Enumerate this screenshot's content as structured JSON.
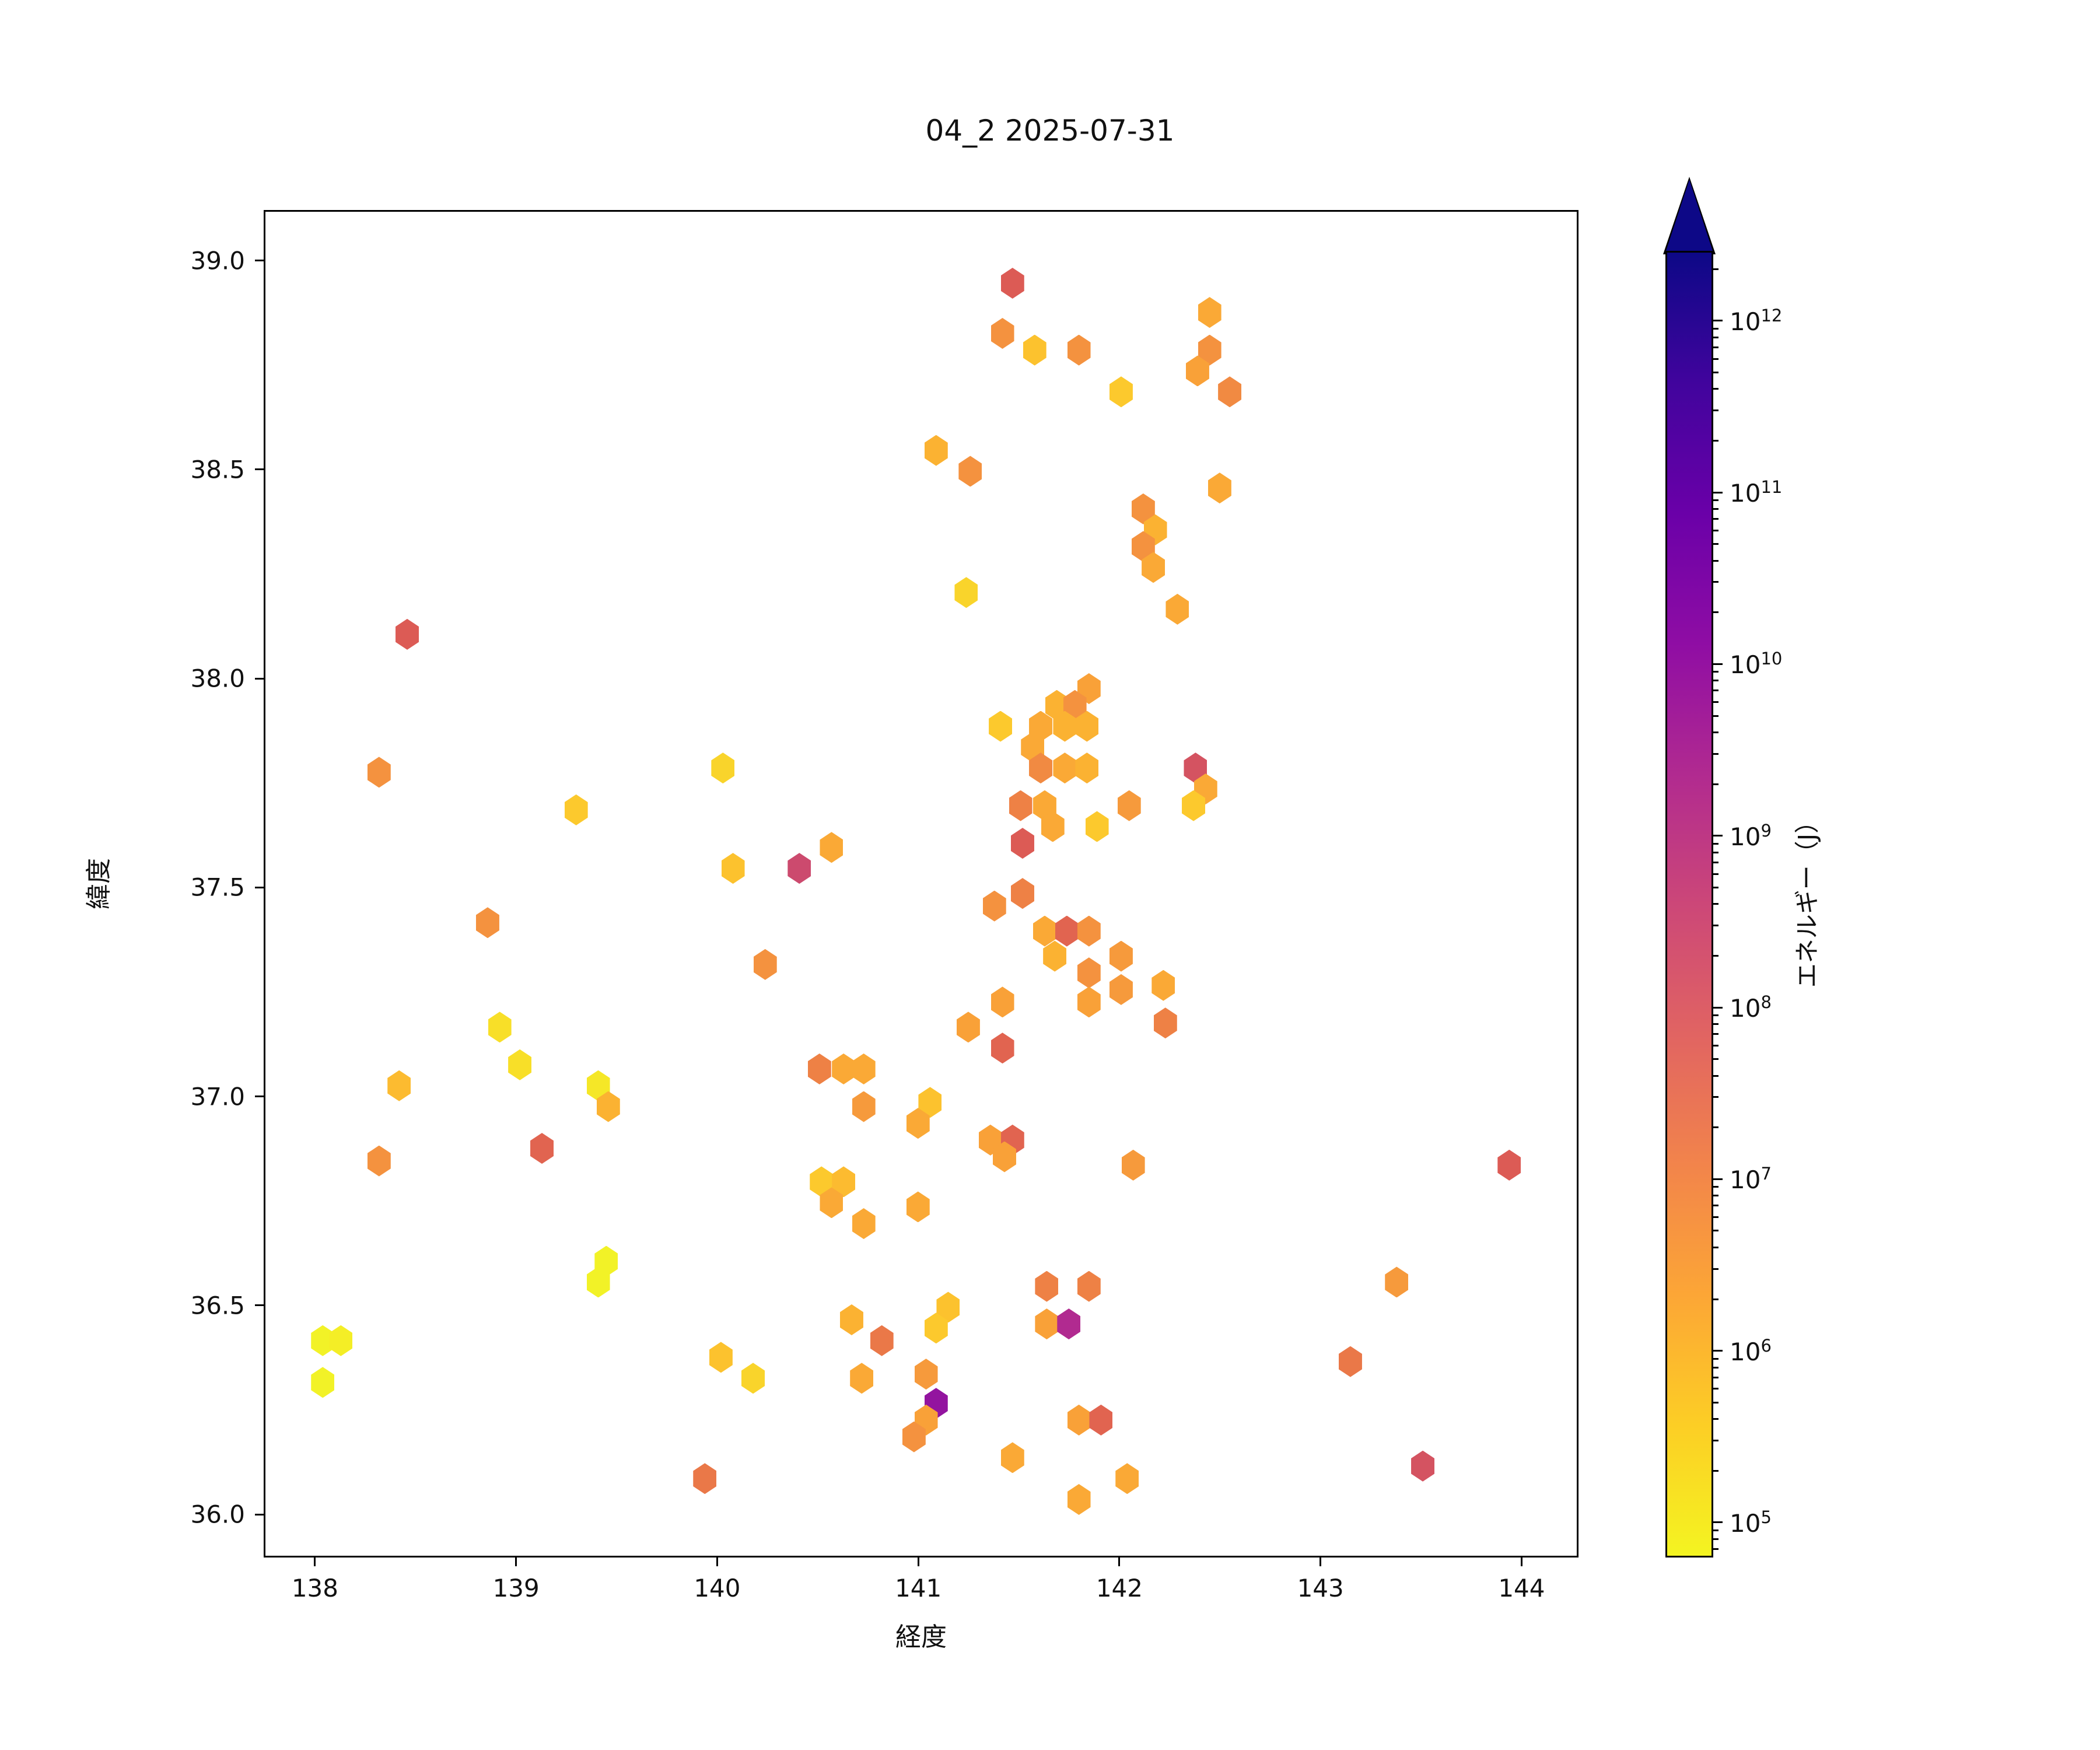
{
  "title": "04_2 2025-07-31",
  "axes": {
    "xlabel": "経度",
    "ylabel": "緯度"
  },
  "colorbar": {
    "label": "エネルギー（J）",
    "scale": "log",
    "extend": "max",
    "range_log10": [
      4.796,
      12.407
    ],
    "ticks": [
      {
        "exp": 5
      },
      {
        "exp": 6
      },
      {
        "exp": 7
      },
      {
        "exp": 8
      },
      {
        "exp": 9
      },
      {
        "exp": 10
      },
      {
        "exp": 11
      },
      {
        "exp": 12
      }
    ],
    "tick_base": "10",
    "gradient": [
      {
        "stop": 0.0,
        "color": "#f4f421"
      },
      {
        "stop": 0.1,
        "color": "#fcce25"
      },
      {
        "stop": 0.2,
        "color": "#fca636"
      },
      {
        "stop": 0.3,
        "color": "#f2844b"
      },
      {
        "stop": 0.4,
        "color": "#e16462"
      },
      {
        "stop": 0.5,
        "color": "#cc4778"
      },
      {
        "stop": 0.6,
        "color": "#b12a90"
      },
      {
        "stop": 0.7,
        "color": "#8f0da4"
      },
      {
        "stop": 0.8,
        "color": "#6a00a8"
      },
      {
        "stop": 0.9,
        "color": "#41049d"
      },
      {
        "stop": 1.0,
        "color": "#0d0887"
      }
    ]
  },
  "chart_data": {
    "type": "scatter",
    "marker": "hexagon",
    "title": "04_2 2025-07-31",
    "xlabel": "経度",
    "ylabel": "緯度",
    "xlim": [
      137.745,
      144.283
    ],
    "ylim": [
      35.897,
      39.121
    ],
    "grid": false,
    "x_ticks": [
      {
        "v": 138,
        "label": "138"
      },
      {
        "v": 139,
        "label": "139"
      },
      {
        "v": 140,
        "label": "140"
      },
      {
        "v": 141,
        "label": "141"
      },
      {
        "v": 142,
        "label": "142"
      },
      {
        "v": 143,
        "label": "143"
      },
      {
        "v": 144,
        "label": "144"
      }
    ],
    "y_ticks": [
      {
        "v": 36.0,
        "label": "36.0"
      },
      {
        "v": 36.5,
        "label": "36.5"
      },
      {
        "v": 37.0,
        "label": "37.0"
      },
      {
        "v": 37.5,
        "label": "37.5"
      },
      {
        "v": 38.0,
        "label": "38.0"
      },
      {
        "v": 38.5,
        "label": "38.5"
      },
      {
        "v": 39.0,
        "label": "39.0"
      }
    ],
    "points": [
      {
        "lon": 141.46,
        "lat": 38.95,
        "color": "#dc5b55",
        "energy": 100000000.0
      },
      {
        "lon": 142.44,
        "lat": 38.88,
        "color": "#faa936",
        "energy": 2000000.0
      },
      {
        "lon": 141.41,
        "lat": 38.83,
        "color": "#f4923f",
        "energy": 7000000.0
      },
      {
        "lon": 141.57,
        "lat": 38.79,
        "color": "#fcc22e",
        "energy": 550000.0
      },
      {
        "lon": 141.79,
        "lat": 38.79,
        "color": "#f4923f",
        "energy": 7000000.0
      },
      {
        "lon": 142.44,
        "lat": 38.79,
        "color": "#f4923f",
        "energy": 7000000.0
      },
      {
        "lon": 142.38,
        "lat": 38.74,
        "color": "#f9a138",
        "energy": 3000000.0
      },
      {
        "lon": 142.54,
        "lat": 38.69,
        "color": "#f18a42",
        "energy": 11000000.0
      },
      {
        "lon": 142.0,
        "lat": 38.69,
        "color": "#fcc92d",
        "energy": 450000.0
      },
      {
        "lon": 141.08,
        "lat": 38.55,
        "color": "#fbb232",
        "energy": 1200000.0
      },
      {
        "lon": 141.25,
        "lat": 38.5,
        "color": "#f4923f",
        "energy": 7000000.0
      },
      {
        "lon": 142.49,
        "lat": 38.46,
        "color": "#faa936",
        "energy": 2000000.0
      },
      {
        "lon": 142.11,
        "lat": 38.41,
        "color": "#f4923f",
        "energy": 7000000.0
      },
      {
        "lon": 142.17,
        "lat": 38.36,
        "color": "#fbb232",
        "energy": 1200000.0
      },
      {
        "lon": 142.11,
        "lat": 38.32,
        "color": "#f4923f",
        "energy": 7000000.0
      },
      {
        "lon": 142.16,
        "lat": 38.27,
        "color": "#faa936",
        "energy": 2000000.0
      },
      {
        "lon": 141.23,
        "lat": 38.21,
        "color": "#f9d42b",
        "energy": 300000.0
      },
      {
        "lon": 142.28,
        "lat": 38.17,
        "color": "#faa936",
        "energy": 2000000.0
      },
      {
        "lon": 141.84,
        "lat": 37.98,
        "color": "#f9a138",
        "energy": 3000000.0
      },
      {
        "lon": 141.68,
        "lat": 37.94,
        "color": "#fbb232",
        "energy": 1200000.0
      },
      {
        "lon": 141.77,
        "lat": 37.94,
        "color": "#f4923f",
        "energy": 7000000.0
      },
      {
        "lon": 141.4,
        "lat": 37.89,
        "color": "#fcc92d",
        "energy": 450000.0
      },
      {
        "lon": 141.6,
        "lat": 37.89,
        "color": "#faa936",
        "energy": 2000000.0
      },
      {
        "lon": 141.72,
        "lat": 37.89,
        "color": "#fbb232",
        "energy": 1200000.0
      },
      {
        "lon": 141.83,
        "lat": 37.89,
        "color": "#fbb232",
        "energy": 1200000.0
      },
      {
        "lon": 141.56,
        "lat": 37.84,
        "color": "#faa936",
        "energy": 2000000.0
      },
      {
        "lon": 141.6,
        "lat": 37.79,
        "color": "#f18a42",
        "energy": 11000000.0
      },
      {
        "lon": 141.72,
        "lat": 37.79,
        "color": "#faa936",
        "energy": 2000000.0
      },
      {
        "lon": 141.83,
        "lat": 37.79,
        "color": "#fbb232",
        "energy": 1200000.0
      },
      {
        "lon": 142.37,
        "lat": 37.79,
        "color": "#d45361",
        "energy": 200000000.0
      },
      {
        "lon": 142.42,
        "lat": 37.74,
        "color": "#faa936",
        "energy": 2000000.0
      },
      {
        "lon": 142.36,
        "lat": 37.7,
        "color": "#fcc92d",
        "energy": 450000.0
      },
      {
        "lon": 141.5,
        "lat": 37.7,
        "color": "#ee8145",
        "energy": 16000000.0
      },
      {
        "lon": 141.62,
        "lat": 37.7,
        "color": "#faa936",
        "energy": 2000000.0
      },
      {
        "lon": 142.04,
        "lat": 37.7,
        "color": "#f69a3c",
        "energy": 4500000.0
      },
      {
        "lon": 141.66,
        "lat": 37.65,
        "color": "#faa936",
        "energy": 2000000.0
      },
      {
        "lon": 141.88,
        "lat": 37.65,
        "color": "#fcc92d",
        "energy": 450000.0
      },
      {
        "lon": 141.51,
        "lat": 37.61,
        "color": "#dc5b55",
        "energy": 100000000.0
      },
      {
        "lon": 141.51,
        "lat": 37.49,
        "color": "#ee8145",
        "energy": 16000000.0
      },
      {
        "lon": 141.37,
        "lat": 37.46,
        "color": "#f4923f",
        "energy": 7000000.0
      },
      {
        "lon": 141.62,
        "lat": 37.4,
        "color": "#faa936",
        "energy": 2000000.0
      },
      {
        "lon": 141.73,
        "lat": 37.4,
        "color": "#e16450",
        "energy": 65000000.0
      },
      {
        "lon": 141.84,
        "lat": 37.4,
        "color": "#f4923f",
        "energy": 7000000.0
      },
      {
        "lon": 141.67,
        "lat": 37.34,
        "color": "#fbb232",
        "energy": 1200000.0
      },
      {
        "lon": 142.0,
        "lat": 37.34,
        "color": "#f69a3c",
        "energy": 4500000.0
      },
      {
        "lon": 141.84,
        "lat": 37.3,
        "color": "#f4923f",
        "energy": 7000000.0
      },
      {
        "lon": 142.0,
        "lat": 37.26,
        "color": "#f69a3c",
        "energy": 4500000.0
      },
      {
        "lon": 142.21,
        "lat": 37.27,
        "color": "#faa936",
        "energy": 2000000.0
      },
      {
        "lon": 141.41,
        "lat": 37.23,
        "color": "#f9a138",
        "energy": 3000000.0
      },
      {
        "lon": 141.84,
        "lat": 37.23,
        "color": "#f9a138",
        "energy": 3000000.0
      },
      {
        "lon": 142.22,
        "lat": 37.18,
        "color": "#ee8145",
        "energy": 16000000.0
      },
      {
        "lon": 141.24,
        "lat": 37.17,
        "color": "#f9a138",
        "energy": 3000000.0
      },
      {
        "lon": 141.41,
        "lat": 37.12,
        "color": "#e16450",
        "energy": 65000000.0
      },
      {
        "lon": 140.23,
        "lat": 37.32,
        "color": "#f4923f",
        "energy": 7000000.0
      },
      {
        "lon": 140.56,
        "lat": 37.6,
        "color": "#faa936",
        "energy": 2000000.0
      },
      {
        "lon": 140.4,
        "lat": 37.55,
        "color": "#cc4a6e",
        "energy": 350000000.0
      },
      {
        "lon": 140.07,
        "lat": 37.55,
        "color": "#fcc22e",
        "energy": 550000.0
      },
      {
        "lon": 140.02,
        "lat": 37.79,
        "color": "#f9d42b",
        "energy": 300000.0
      },
      {
        "lon": 138.45,
        "lat": 38.11,
        "color": "#dc5b55",
        "energy": 100000000.0
      },
      {
        "lon": 138.31,
        "lat": 37.78,
        "color": "#f4923f",
        "energy": 7000000.0
      },
      {
        "lon": 139.29,
        "lat": 37.69,
        "color": "#fcc92d",
        "energy": 450000.0
      },
      {
        "lon": 138.85,
        "lat": 37.42,
        "color": "#f4923f",
        "energy": 7000000.0
      },
      {
        "lon": 138.91,
        "lat": 37.17,
        "color": "#f8df28",
        "energy": 180000.0
      },
      {
        "lon": 139.01,
        "lat": 37.08,
        "color": "#f8df28",
        "energy": 180000.0
      },
      {
        "lon": 138.41,
        "lat": 37.03,
        "color": "#fcbb30",
        "energy": 800000.0
      },
      {
        "lon": 139.4,
        "lat": 37.03,
        "color": "#f5e727",
        "energy": 120000.0
      },
      {
        "lon": 139.45,
        "lat": 36.98,
        "color": "#fbb232",
        "energy": 1200000.0
      },
      {
        "lon": 139.12,
        "lat": 36.88,
        "color": "#e16450",
        "energy": 65000000.0
      },
      {
        "lon": 138.31,
        "lat": 36.85,
        "color": "#f4923f",
        "energy": 7000000.0
      },
      {
        "lon": 139.44,
        "lat": 36.61,
        "color": "#f2f227",
        "energy": 80000.0
      },
      {
        "lon": 139.4,
        "lat": 36.56,
        "color": "#f2f227",
        "energy": 80000.0
      },
      {
        "lon": 138.03,
        "lat": 36.42,
        "color": "#f2f227",
        "energy": 80000.0
      },
      {
        "lon": 138.12,
        "lat": 36.42,
        "color": "#f4ee26",
        "energy": 100000.0
      },
      {
        "lon": 138.03,
        "lat": 36.32,
        "color": "#f2f227",
        "energy": 80000.0
      },
      {
        "lon": 139.93,
        "lat": 36.09,
        "color": "#ea7848",
        "energy": 25000000.0
      },
      {
        "lon": 140.5,
        "lat": 37.07,
        "color": "#ee8145",
        "energy": 16000000.0
      },
      {
        "lon": 140.62,
        "lat": 37.07,
        "color": "#faa936",
        "energy": 2000000.0
      },
      {
        "lon": 140.72,
        "lat": 37.07,
        "color": "#faa936",
        "energy": 2000000.0
      },
      {
        "lon": 140.72,
        "lat": 36.98,
        "color": "#f69a3c",
        "energy": 4500000.0
      },
      {
        "lon": 141.05,
        "lat": 36.99,
        "color": "#fcc22e",
        "energy": 550000.0
      },
      {
        "lon": 140.99,
        "lat": 36.94,
        "color": "#faa936",
        "energy": 2000000.0
      },
      {
        "lon": 141.35,
        "lat": 36.9,
        "color": "#f9a138",
        "energy": 3000000.0
      },
      {
        "lon": 141.46,
        "lat": 36.9,
        "color": "#e16450",
        "energy": 65000000.0
      },
      {
        "lon": 141.42,
        "lat": 36.86,
        "color": "#f9a138",
        "energy": 3000000.0
      },
      {
        "lon": 142.06,
        "lat": 36.84,
        "color": "#f69a3c",
        "energy": 4500000.0
      },
      {
        "lon": 140.51,
        "lat": 36.8,
        "color": "#fcc92d",
        "energy": 450000.0
      },
      {
        "lon": 140.62,
        "lat": 36.8,
        "color": "#fcbb30",
        "energy": 800000.0
      },
      {
        "lon": 140.56,
        "lat": 36.75,
        "color": "#faa936",
        "energy": 2000000.0
      },
      {
        "lon": 140.99,
        "lat": 36.74,
        "color": "#faa936",
        "energy": 2000000.0
      },
      {
        "lon": 140.72,
        "lat": 36.7,
        "color": "#faa936",
        "energy": 2000000.0
      },
      {
        "lon": 141.63,
        "lat": 36.55,
        "color": "#ee8145",
        "energy": 16000000.0
      },
      {
        "lon": 141.84,
        "lat": 36.55,
        "color": "#ee8145",
        "energy": 16000000.0
      },
      {
        "lon": 141.14,
        "lat": 36.5,
        "color": "#fcc22e",
        "energy": 550000.0
      },
      {
        "lon": 141.08,
        "lat": 36.45,
        "color": "#fcc92d",
        "energy": 450000.0
      },
      {
        "lon": 141.63,
        "lat": 36.46,
        "color": "#f9a138",
        "energy": 3000000.0
      },
      {
        "lon": 141.74,
        "lat": 36.46,
        "color": "#b12a90",
        "energy": 2000000000.0
      },
      {
        "lon": 140.66,
        "lat": 36.47,
        "color": "#fbb232",
        "energy": 1200000.0
      },
      {
        "lon": 140.81,
        "lat": 36.42,
        "color": "#ea7848",
        "energy": 25000000.0
      },
      {
        "lon": 140.71,
        "lat": 36.33,
        "color": "#faa936",
        "energy": 2000000.0
      },
      {
        "lon": 140.01,
        "lat": 36.38,
        "color": "#fcc22e",
        "energy": 550000.0
      },
      {
        "lon": 140.17,
        "lat": 36.33,
        "color": "#f9d42b",
        "energy": 300000.0
      },
      {
        "lon": 141.03,
        "lat": 36.34,
        "color": "#f69a3c",
        "energy": 4500000.0
      },
      {
        "lon": 141.08,
        "lat": 36.27,
        "color": "#93149f",
        "energy": 9000000000.0
      },
      {
        "lon": 141.03,
        "lat": 36.23,
        "color": "#f9a138",
        "energy": 3000000.0
      },
      {
        "lon": 140.97,
        "lat": 36.19,
        "color": "#f4923f",
        "energy": 7000000.0
      },
      {
        "lon": 141.79,
        "lat": 36.23,
        "color": "#f9a138",
        "energy": 3000000.0
      },
      {
        "lon": 141.9,
        "lat": 36.23,
        "color": "#e16450",
        "energy": 65000000.0
      },
      {
        "lon": 141.46,
        "lat": 36.14,
        "color": "#faa936",
        "energy": 2000000.0
      },
      {
        "lon": 142.03,
        "lat": 36.09,
        "color": "#faa936",
        "energy": 2000000.0
      },
      {
        "lon": 141.79,
        "lat": 36.04,
        "color": "#faa936",
        "energy": 2000000.0
      },
      {
        "lon": 143.93,
        "lat": 36.84,
        "color": "#dc5b55",
        "energy": 100000000.0
      },
      {
        "lon": 143.37,
        "lat": 36.56,
        "color": "#f69a3c",
        "energy": 4500000.0
      },
      {
        "lon": 143.14,
        "lat": 36.37,
        "color": "#ea7848",
        "energy": 25000000.0
      },
      {
        "lon": 143.5,
        "lat": 36.12,
        "color": "#d45361",
        "energy": 200000000.0
      }
    ]
  }
}
